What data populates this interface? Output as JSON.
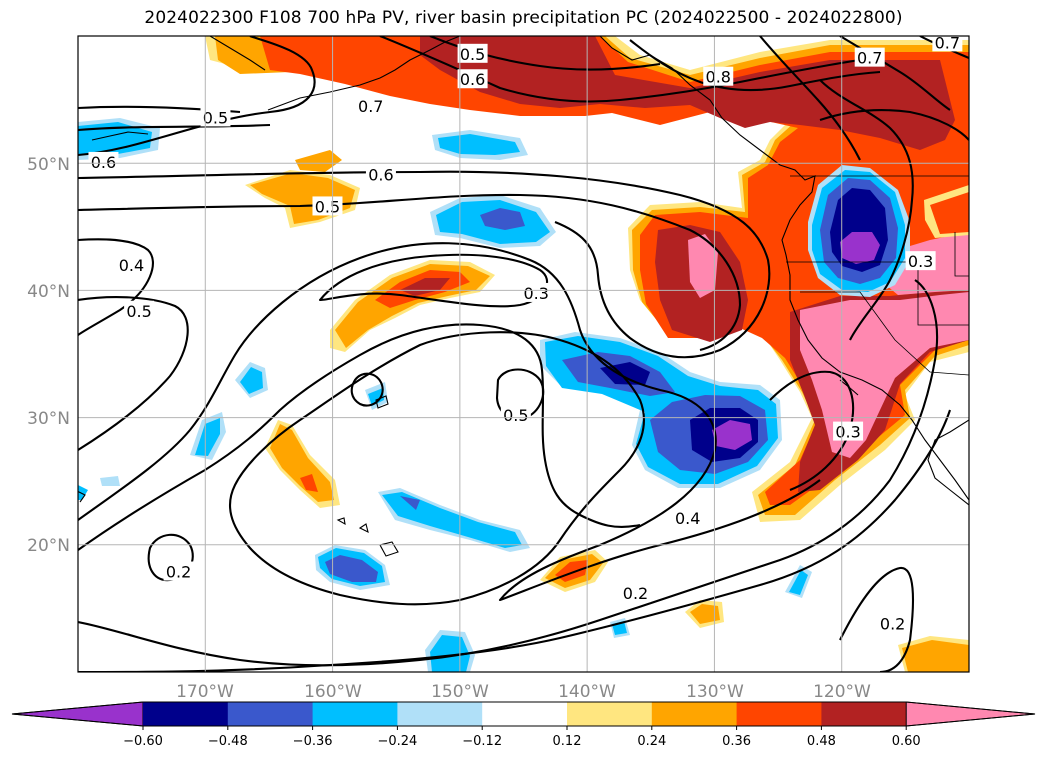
{
  "title": "2024022300 F108 700 hPa PV, river basin precipitation PC (2024022500 - 2024022800)",
  "map": {
    "extent": {
      "lon_min": -180,
      "lon_max": -110,
      "lat_min": 10,
      "lat_max": 60
    },
    "lon_ticks": [
      {
        "lon": -170,
        "label": "170°W"
      },
      {
        "lon": -160,
        "label": "160°W"
      },
      {
        "lon": -150,
        "label": "150°W"
      },
      {
        "lon": -140,
        "label": "140°W"
      },
      {
        "lon": -130,
        "label": "130°W"
      },
      {
        "lon": -120,
        "label": "120°W"
      }
    ],
    "lat_ticks": [
      {
        "lat": 50,
        "label": "50°N"
      },
      {
        "lat": 40,
        "label": "40°N"
      },
      {
        "lat": 30,
        "label": "30°N"
      },
      {
        "lat": 20,
        "label": "20°N"
      }
    ],
    "contour_labels": [
      {
        "text": "0.5",
        "lon": -149,
        "lat": 58.6
      },
      {
        "text": "0.6",
        "lon": -149,
        "lat": 56.6
      },
      {
        "text": "0.7",
        "lon": -157,
        "lat": 54.5
      },
      {
        "text": "0.8",
        "lon": -129.7,
        "lat": 56.8
      },
      {
        "text": "0.7",
        "lon": -117.8,
        "lat": 58.3
      },
      {
        "text": "0.7",
        "lon": -111.7,
        "lat": 59.5
      },
      {
        "text": "0.5",
        "lon": -169.2,
        "lat": 53.6
      },
      {
        "text": "0.6",
        "lon": -178,
        "lat": 50.1
      },
      {
        "text": "0.6",
        "lon": -156.2,
        "lat": 49.1
      },
      {
        "text": "0.5",
        "lon": -160.4,
        "lat": 46.6
      },
      {
        "text": "0.4",
        "lon": -175.8,
        "lat": 42
      },
      {
        "text": "0.5",
        "lon": -175.2,
        "lat": 38.4
      },
      {
        "text": "0.3",
        "lon": -144,
        "lat": 39.8
      },
      {
        "text": "0.5",
        "lon": -145.6,
        "lat": 30.2
      },
      {
        "text": "0.3",
        "lon": -113.8,
        "lat": 42.3
      },
      {
        "text": "0.3",
        "lon": -119.5,
        "lat": 28.9
      },
      {
        "text": "0.4",
        "lon": -132.1,
        "lat": 22.1
      },
      {
        "text": "0.2",
        "lon": -136.2,
        "lat": 16.2
      },
      {
        "text": "0.2",
        "lon": -172.1,
        "lat": 17.9
      },
      {
        "text": "0.2",
        "lon": -116,
        "lat": 13.8
      }
    ]
  },
  "colorbar": {
    "colors": [
      "#9932CC",
      "#00008B",
      "#3A58CC",
      "#00BFFF",
      "#B0E0F8",
      "#FFFFFF",
      "#FFE680",
      "#FFA500",
      "#FF4500",
      "#B22222",
      "#FF88B0"
    ],
    "ticks": [
      "−0.60",
      "−0.48",
      "−0.36",
      "−0.24",
      "−0.12",
      "0.12",
      "0.24",
      "0.36",
      "0.48",
      "0.60"
    ]
  }
}
